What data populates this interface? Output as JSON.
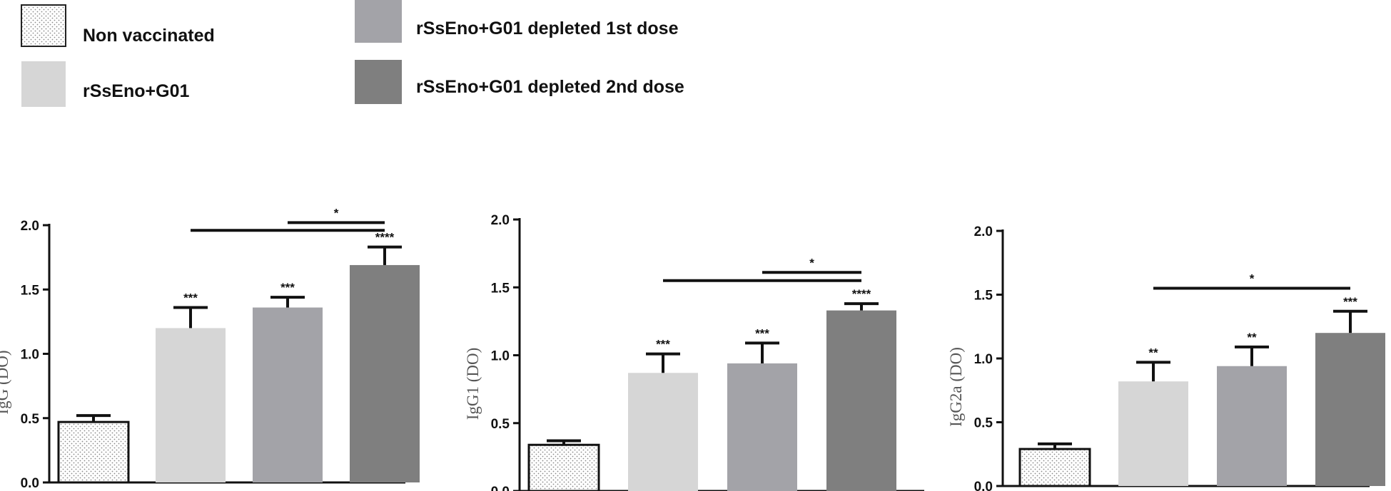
{
  "legend": [
    {
      "label": "Non vaccinated",
      "color": "#ffffff",
      "pattern": "dots"
    },
    {
      "label": "rSsEno+G01",
      "color": "#d6d6d6",
      "pattern": "none"
    },
    {
      "label": "rSsEno+G01 depleted 1st dose",
      "color": "#a3a3a8",
      "pattern": "none"
    },
    {
      "label": "rSsEno+G01 depleted 2nd dose",
      "color": "#7f7f7f",
      "pattern": "none"
    }
  ],
  "chart_data": [
    {
      "type": "bar",
      "ylabel": "IgG (DO)",
      "ylim": [
        0,
        2.0
      ],
      "yticks": [
        "0.0",
        "0.5",
        "1.0",
        "1.5",
        "2.0"
      ],
      "series": [
        {
          "name": "Non vaccinated",
          "value": 0.47,
          "error": 0.05,
          "sig": ""
        },
        {
          "name": "rSsEno+G01",
          "value": 1.2,
          "error": 0.16,
          "sig": "***"
        },
        {
          "name": "rSsEno+G01 depleted 1st dose",
          "value": 1.36,
          "error": 0.08,
          "sig": "***"
        },
        {
          "name": "rSsEno+G01 depleted 2nd dose",
          "value": 1.69,
          "error": 0.14,
          "sig": "****"
        }
      ],
      "comparisons": [
        {
          "from": 1,
          "to": 3,
          "label": "",
          "level": 1.96
        },
        {
          "from": 2,
          "to": 3,
          "label": "*",
          "level": 2.02
        }
      ]
    },
    {
      "type": "bar",
      "ylabel": "IgG1 (DO)",
      "ylim": [
        0,
        2.0
      ],
      "yticks": [
        "0.0",
        "0.5",
        "1.0",
        "1.5",
        "2.0"
      ],
      "series": [
        {
          "name": "Non vaccinated",
          "value": 0.34,
          "error": 0.03,
          "sig": ""
        },
        {
          "name": "rSsEno+G01",
          "value": 0.87,
          "error": 0.14,
          "sig": "***"
        },
        {
          "name": "rSsEno+G01 depleted 1st dose",
          "value": 0.94,
          "error": 0.15,
          "sig": "***"
        },
        {
          "name": "rSsEno+G01 depleted 2nd dose",
          "value": 1.33,
          "error": 0.05,
          "sig": "****"
        }
      ],
      "comparisons": [
        {
          "from": 1,
          "to": 3,
          "label": "",
          "level": 1.55
        },
        {
          "from": 2,
          "to": 3,
          "label": "*",
          "level": 1.61
        }
      ]
    },
    {
      "type": "bar",
      "ylabel": "IgG2a (DO)",
      "ylim": [
        0,
        2.0
      ],
      "yticks": [
        "0.0",
        "0.5",
        "1.0",
        "1.5",
        "2.0"
      ],
      "series": [
        {
          "name": "Non vaccinated",
          "value": 0.29,
          "error": 0.04,
          "sig": ""
        },
        {
          "name": "rSsEno+G01",
          "value": 0.82,
          "error": 0.15,
          "sig": "**"
        },
        {
          "name": "rSsEno+G01 depleted 1st dose",
          "value": 0.94,
          "error": 0.15,
          "sig": "**"
        },
        {
          "name": "rSsEno+G01 depleted 2nd dose",
          "value": 1.2,
          "error": 0.17,
          "sig": "***"
        }
      ],
      "comparisons": [
        {
          "from": 1,
          "to": 3,
          "label": "*",
          "level": 1.55
        }
      ]
    }
  ]
}
